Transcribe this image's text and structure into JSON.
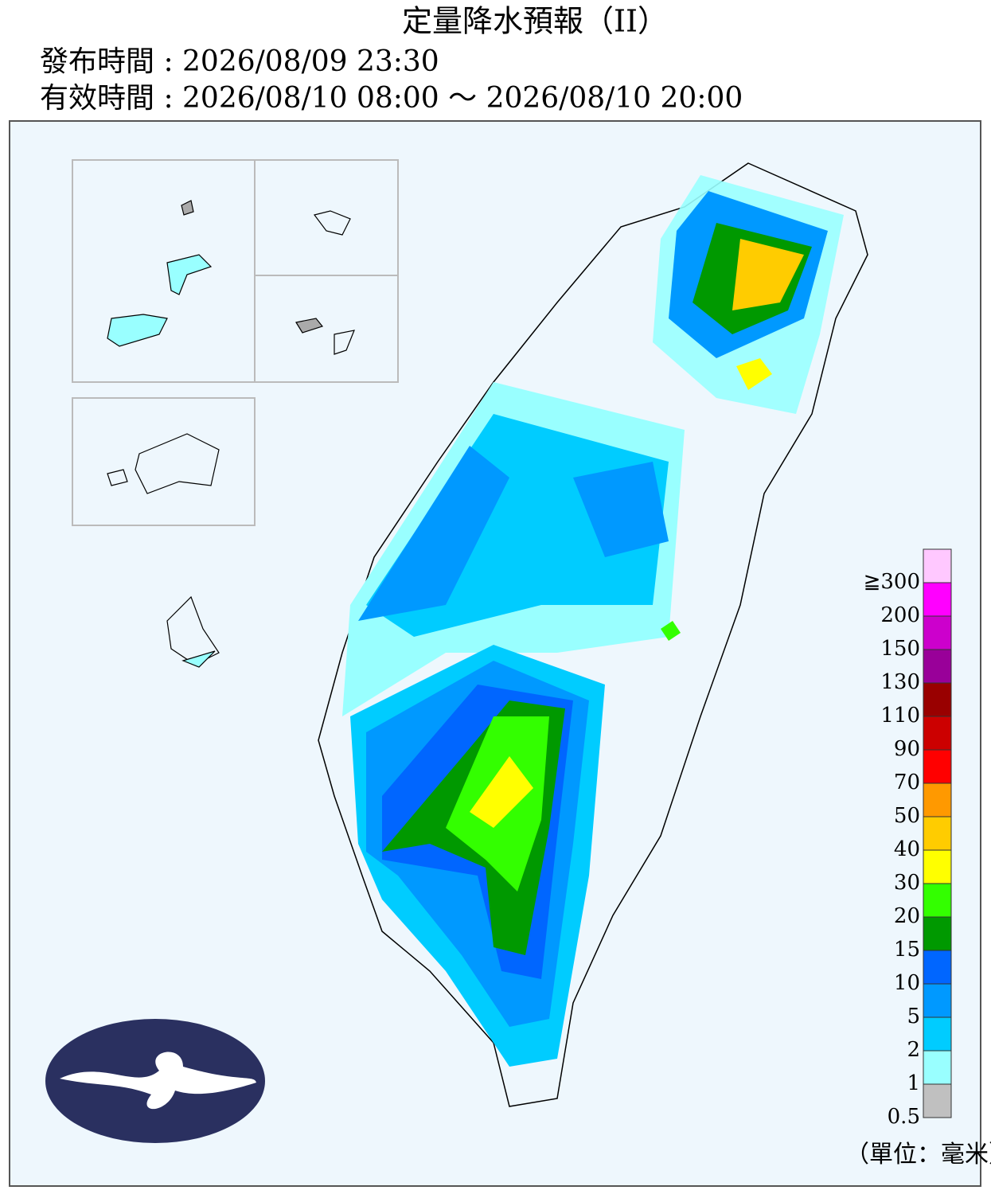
{
  "header": {
    "title": "定量降水預報（II）",
    "issued": "發布時間 : 2026/08/09 23:30",
    "valid": "有效時間 : 2026/08/10 08:00 ～ 2026/08/10 20:00"
  },
  "legend": {
    "items": [
      {
        "label": "≧300",
        "color": "#ffc8ff"
      },
      {
        "label": "200",
        "color": "#ff00ff"
      },
      {
        "label": "150",
        "color": "#cc00cc"
      },
      {
        "label": "130",
        "color": "#990099"
      },
      {
        "label": "110",
        "color": "#990000"
      },
      {
        "label": "90",
        "color": "#cc0000"
      },
      {
        "label": "70",
        "color": "#ff0000"
      },
      {
        "label": "50",
        "color": "#ff9900"
      },
      {
        "label": "40",
        "color": "#ffcc00"
      },
      {
        "label": "30",
        "color": "#ffff00"
      },
      {
        "label": "20",
        "color": "#33ff00"
      },
      {
        "label": "15",
        "color": "#009900"
      },
      {
        "label": "10",
        "color": "#0066ff"
      },
      {
        "label": "5",
        "color": "#0099ff"
      },
      {
        "label": "2",
        "color": "#00ccff"
      },
      {
        "label": "1",
        "color": "#99ffff"
      },
      {
        "label": "0.5",
        "color": "#c0c0c0"
      }
    ],
    "unit": "（單位：毫米）"
  }
}
